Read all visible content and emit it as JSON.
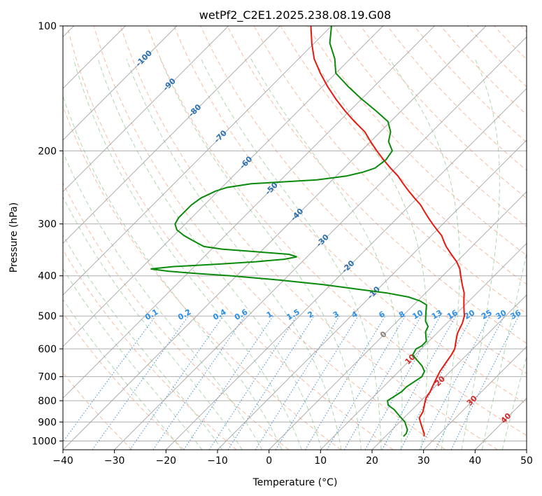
{
  "chart_data": {
    "type": "line",
    "title": "wetPf2_C2E1.2025.238.08.19.G08",
    "xlabel": "Temperature (°C)",
    "ylabel": "Pressure (hPa)",
    "xlim": [
      -40,
      50
    ],
    "ylim": [
      1050,
      100
    ],
    "x_ticks": [
      "−40",
      "−30",
      "−20",
      "−10",
      "0",
      "10",
      "20",
      "30",
      "40",
      "50"
    ],
    "x_tick_values": [
      -40,
      -30,
      -20,
      -10,
      0,
      10,
      20,
      30,
      40,
      50
    ],
    "y_ticks": [
      "1000",
      "900",
      "800",
      "700",
      "600",
      "500",
      "400",
      "300",
      "200",
      "100"
    ],
    "y_tick_values": [
      1000,
      900,
      800,
      700,
      600,
      500,
      400,
      300,
      200,
      100
    ],
    "skew_degrees": 45,
    "grid": true,
    "colors": {
      "temperature": "#e8180f",
      "dewpoint": "#0a8a0a",
      "isotherm": "#a0a0a0",
      "dry_adiabat": "#f4a582",
      "moist_adiabat": "#9acd9a",
      "mixing_ratio": "#3a8fdc",
      "isotherm_label": "#2a6fb0",
      "mixing_label": "#2a8fe6",
      "dry_label": "#d62728",
      "zero_label": "#808080"
    },
    "series": [
      {
        "name": "Temperature",
        "pressure": [
          975,
          960,
          940,
          910,
          880,
          850,
          820,
          790,
          760,
          740,
          720,
          700,
          680,
          650,
          620,
          600,
          570,
          550,
          520,
          500,
          480,
          460,
          440,
          420,
          400,
          385,
          370,
          355,
          340,
          330,
          320,
          310,
          300,
          290,
          280,
          270,
          260,
          250,
          240,
          230,
          220,
          210,
          200,
          190,
          180,
          170,
          160,
          150,
          140,
          130,
          120,
          110,
          100
        ],
        "temperature": [
          27.5,
          27.0,
          26.0,
          24.5,
          23.0,
          22.5,
          21.5,
          20.5,
          20.0,
          19.5,
          19.0,
          18.5,
          18.0,
          17.5,
          17.0,
          16.5,
          15.0,
          14.0,
          13.0,
          12.0,
          10.5,
          9.0,
          7.5,
          5.5,
          3.5,
          2.0,
          0.0,
          -2.5,
          -5.0,
          -6.5,
          -8.0,
          -10.0,
          -12.0,
          -14.0,
          -16.0,
          -18.0,
          -20.5,
          -23.0,
          -25.5,
          -28.0,
          -31.0,
          -34.0,
          -37.0,
          -40.0,
          -43.0,
          -47.0,
          -51.0,
          -55.0,
          -59.0,
          -63.0,
          -67.0,
          -70.5,
          -74.0
        ]
      },
      {
        "name": "Dewpoint",
        "pressure": [
          975,
          960,
          940,
          920,
          900,
          880,
          860,
          840,
          820,
          800,
          780,
          760,
          740,
          720,
          700,
          680,
          660,
          640,
          620,
          600,
          590,
          575,
          560,
          545,
          530,
          515,
          500,
          485,
          470,
          460,
          450,
          440,
          430,
          420,
          410,
          400,
          395,
          390,
          385,
          380,
          375,
          370,
          365,
          360,
          355,
          350,
          345,
          340,
          330,
          320,
          310,
          300,
          290,
          280,
          270,
          260,
          250,
          245,
          240,
          235,
          230,
          225,
          220,
          210,
          200,
          190,
          180,
          170,
          160,
          150,
          140,
          130,
          120,
          110,
          100
        ],
        "dewpoint": [
          23.5,
          23.5,
          23.0,
          22.0,
          21.0,
          19.5,
          18.0,
          16.5,
          14.5,
          13.5,
          14.0,
          14.5,
          14.5,
          15.0,
          15.5,
          15.0,
          13.5,
          11.5,
          9.5,
          9.0,
          9.5,
          9.5,
          8.5,
          7.5,
          7.0,
          5.5,
          4.5,
          3.5,
          2.5,
          0.5,
          -2.5,
          -7.5,
          -14.5,
          -21.5,
          -30.5,
          -41.0,
          -48.0,
          -54.0,
          -58.0,
          -54.0,
          -46.0,
          -39.0,
          -34.0,
          -32.0,
          -34.0,
          -41.0,
          -48.0,
          -52.0,
          -55.0,
          -58.0,
          -60.5,
          -62.0,
          -62.5,
          -62.5,
          -62.5,
          -62.0,
          -60.5,
          -59.0,
          -55.0,
          -43.0,
          -38.0,
          -35.5,
          -34.0,
          -33.5,
          -34.0,
          -36.5,
          -38.0,
          -40.5,
          -45.0,
          -50.0,
          -55.0,
          -60.0,
          -63.0,
          -67.0,
          -70.0
        ]
      }
    ],
    "isotherm_labels": [
      "-100",
      "-90",
      "-80",
      "-70",
      "-60",
      "-50",
      "-40",
      "-30",
      "-20",
      "-10",
      "0",
      "10",
      "20",
      "30",
      "40"
    ],
    "isotherm_label_values": [
      -100,
      -90,
      -80,
      -70,
      -60,
      -50,
      -40,
      -30,
      -20,
      -10,
      0,
      10,
      20,
      30,
      40
    ],
    "mixing_ratio_labels": [
      "0.1",
      "0.2",
      "0.4",
      "0.6",
      "1",
      "1.5",
      "2",
      "3",
      "4",
      "6",
      "8",
      "10",
      "13",
      "16",
      "20",
      "25",
      "30",
      "36"
    ],
    "mixing_ratio_values": [
      0.1,
      0.2,
      0.4,
      0.6,
      1,
      1.5,
      2,
      3,
      4,
      6,
      8,
      10,
      13,
      16,
      20,
      25,
      30,
      36
    ]
  }
}
